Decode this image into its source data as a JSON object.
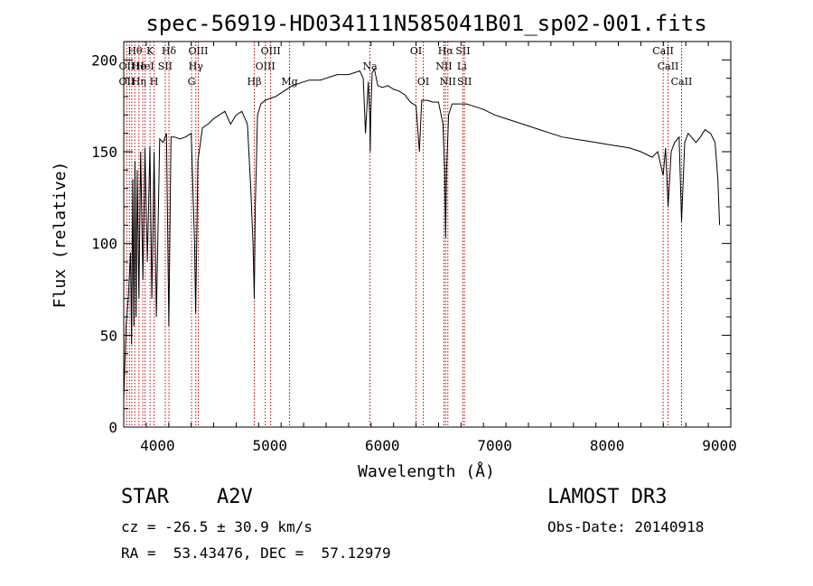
{
  "chart_data": {
    "type": "line",
    "title": "spec-56919-HD034111N585041B01_sp02-001.fits",
    "xlabel": "Wavelength (Å)",
    "ylabel": "Flux (relative)",
    "xlim": [
      3700,
      9100
    ],
    "ylim": [
      0,
      210
    ],
    "xticks": [
      4000,
      5000,
      6000,
      7000,
      8000,
      9000
    ],
    "xtick_labels": [
      "4000",
      "5000",
      "6000",
      "7000",
      "8000",
      "9000"
    ],
    "yticks": [
      0,
      50,
      100,
      150,
      200
    ],
    "ytick_labels": [
      "0",
      "50",
      "100",
      "150",
      "200"
    ],
    "grid": false,
    "series": [
      {
        "name": "flux",
        "x": [
          3700,
          3720,
          3740,
          3760,
          3770,
          3780,
          3790,
          3800,
          3810,
          3820,
          3835,
          3850,
          3870,
          3889,
          3910,
          3933,
          3950,
          3970,
          3990,
          4020,
          4050,
          4080,
          4101,
          4120,
          4150,
          4200,
          4250,
          4300,
          4330,
          4340,
          4360,
          4400,
          4450,
          4500,
          4550,
          4600,
          4650,
          4700,
          4750,
          4800,
          4830,
          4850,
          4861,
          4870,
          4890,
          4920,
          4960,
          5000,
          5050,
          5100,
          5150,
          5200,
          5250,
          5300,
          5350,
          5400,
          5450,
          5500,
          5550,
          5600,
          5650,
          5700,
          5750,
          5800,
          5830,
          5850,
          5875,
          5889,
          5893,
          5897,
          5910,
          5930,
          5960,
          6000,
          6050,
          6100,
          6150,
          6200,
          6250,
          6300,
          6330,
          6350,
          6400,
          6450,
          6500,
          6540,
          6555,
          6563,
          6572,
          6590,
          6620,
          6680,
          6750,
          6800,
          6900,
          7000,
          7100,
          7200,
          7300,
          7400,
          7500,
          7600,
          7700,
          7800,
          7900,
          8000,
          8100,
          8200,
          8300,
          8400,
          8450,
          8498,
          8520,
          8542,
          8570,
          8600,
          8640,
          8662,
          8690,
          8720,
          8750,
          8790,
          8830,
          8870,
          8920,
          8960,
          8985,
          9000
        ],
        "y": [
          15,
          55,
          70,
          95,
          45,
          135,
          55,
          145,
          60,
          140,
          70,
          150,
          80,
          152,
          90,
          153,
          70,
          150,
          60,
          157,
          155,
          160,
          55,
          158,
          158,
          157,
          158,
          160,
          100,
          62,
          145,
          163,
          165,
          168,
          170,
          172,
          165,
          170,
          172,
          165,
          130,
          100,
          70,
          120,
          170,
          176,
          178,
          179,
          180,
          182,
          184,
          186,
          187,
          188,
          189,
          189,
          189,
          190,
          191,
          192,
          192,
          192,
          193,
          194,
          190,
          160,
          188,
          168,
          150,
          170,
          193,
          195,
          186,
          185,
          186,
          184,
          183,
          181,
          177,
          175,
          150,
          178,
          178,
          177,
          177,
          165,
          140,
          103,
          140,
          170,
          176,
          176,
          176,
          175,
          173,
          170,
          168,
          166,
          164,
          162,
          160,
          158,
          157,
          156,
          155,
          154,
          153,
          152,
          150,
          147,
          150,
          137,
          152,
          120,
          150,
          155,
          158,
          112,
          155,
          160,
          158,
          155,
          158,
          162,
          160,
          155,
          135,
          110
        ]
      }
    ],
    "annotations": {
      "lines": [
        3727,
        3750,
        3771,
        3798,
        3835,
        3869,
        3889,
        3934,
        3970,
        4069,
        4102,
        4303,
        4341,
        4363,
        4861,
        4959,
        5007,
        5175,
        5890,
        6300,
        6364,
        6548,
        6563,
        6583,
        6717,
        6731,
        8498,
        8542,
        8662
      ],
      "labels": [
        {
          "text": "Hθ",
          "x": 3800,
          "row": 1
        },
        {
          "text": "K",
          "x": 3934,
          "row": 1
        },
        {
          "text": "Hδ",
          "x": 4102,
          "row": 1
        },
        {
          "text": "OIII",
          "x": 4363,
          "row": 1
        },
        {
          "text": "OIII",
          "x": 5007,
          "row": 1
        },
        {
          "text": "OI",
          "x": 6300,
          "row": 1
        },
        {
          "text": "Hα",
          "x": 6563,
          "row": 1
        },
        {
          "text": "SII",
          "x": 6717,
          "row": 1
        },
        {
          "text": "CaII",
          "x": 8498,
          "row": 1
        },
        {
          "text": "OII",
          "x": 3727,
          "row": 2
        },
        {
          "text": "He",
          "x": 3835,
          "row": 2
        },
        {
          "text": "HeI",
          "x": 3889,
          "row": 2
        },
        {
          "text": "SII",
          "x": 4069,
          "row": 2
        },
        {
          "text": "Hγ",
          "x": 4341,
          "row": 2
        },
        {
          "text": "OIII",
          "x": 4959,
          "row": 2
        },
        {
          "text": "Na",
          "x": 5890,
          "row": 2
        },
        {
          "text": "NII",
          "x": 6548,
          "row": 2
        },
        {
          "text": "Li",
          "x": 6708,
          "row": 2
        },
        {
          "text": "CaII",
          "x": 8542,
          "row": 2
        },
        {
          "text": "OII",
          "x": 3727,
          "row": 3
        },
        {
          "text": "Hη",
          "x": 3835,
          "row": 3
        },
        {
          "text": "H",
          "x": 3970,
          "row": 3
        },
        {
          "text": "G",
          "x": 4303,
          "row": 3
        },
        {
          "text": "Hβ",
          "x": 4861,
          "row": 3
        },
        {
          "text": "Mg",
          "x": 5175,
          "row": 3
        },
        {
          "text": "OI",
          "x": 6364,
          "row": 3
        },
        {
          "text": "NII",
          "x": 6583,
          "row": 3
        },
        {
          "text": "SII",
          "x": 6731,
          "row": 3
        },
        {
          "text": "CaII",
          "x": 8662,
          "row": 3
        }
      ]
    }
  },
  "info": {
    "object_class": "STAR",
    "subclass": "A2V",
    "survey": "LAMOST DR3",
    "redshift_text": "cz = -26.5 ± 30.9 km/s",
    "obs_date_text": "Obs-Date: 20140918",
    "coords_text": "RA =  53.43476, DEC =  57.12979"
  }
}
